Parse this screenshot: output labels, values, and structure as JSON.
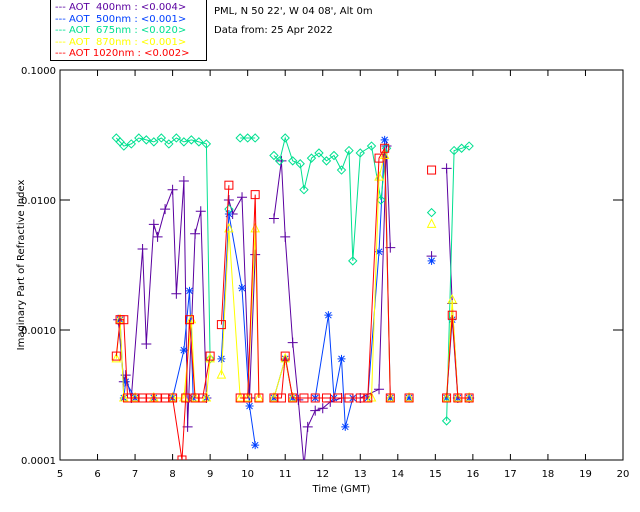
{
  "header": {
    "line1": "PML, N 50 22', W 04 08', Alt 0m",
    "line2": "Data from: 25 Apr 2022"
  },
  "chart_data": {
    "type": "line",
    "xlabel": "Time (GMT)",
    "ylabel": "Imaginary Part of Refractive Index",
    "xlim": [
      5,
      20
    ],
    "ylim": [
      0.0001,
      0.1
    ],
    "yscale": "log",
    "xticks": [
      "5",
      "6",
      "7",
      "8",
      "9",
      "10",
      "11",
      "12",
      "13",
      "14",
      "15",
      "16",
      "17",
      "18",
      "19",
      "20"
    ],
    "yticks": [
      "0.0001",
      "0.0010",
      "0.0100",
      "0.1000"
    ],
    "legend_position": "top-left",
    "series": [
      {
        "name": "AOT  400nm : <0.004>",
        "color": "#5a00a0",
        "marker": "plus",
        "points": [
          [
            6.55,
            0.0012
          ],
          [
            6.7,
            0.0004
          ],
          [
            6.75,
            0.00045
          ],
          [
            6.9,
            0.0003
          ],
          [
            7.2,
            0.0042
          ],
          [
            7.3,
            0.00078
          ],
          [
            7.5,
            0.0065
          ],
          [
            7.6,
            0.0052
          ],
          [
            7.8,
            0.0085
          ],
          [
            8.0,
            0.012
          ],
          [
            8.1,
            0.0019
          ],
          [
            8.3,
            0.014
          ],
          [
            8.4,
            0.00018
          ],
          [
            8.6,
            0.0055
          ],
          [
            8.75,
            0.0082
          ],
          [
            8.9,
            0.0003
          ],
          [
            null,
            null
          ],
          [
            9.5,
            0.01
          ],
          [
            9.6,
            0.0078
          ],
          [
            9.85,
            0.0105
          ],
          [
            10.05,
            0.0003
          ],
          [
            10.2,
            0.0038
          ],
          [
            null,
            null
          ],
          [
            10.7,
            0.0072
          ],
          [
            10.9,
            0.02
          ],
          [
            11.0,
            0.0052
          ],
          [
            11.2,
            0.0008
          ],
          [
            11.35,
            0.00029
          ],
          [
            11.5,
            9e-05
          ],
          [
            11.6,
            0.00018
          ],
          [
            11.8,
            0.00024
          ],
          [
            12.0,
            0.00025
          ],
          [
            12.2,
            0.00028
          ],
          [
            12.5,
            0.0003
          ],
          [
            13.0,
            0.0003
          ],
          [
            13.5,
            0.00035
          ],
          [
            13.7,
            0.026
          ],
          [
            13.8,
            0.0043
          ],
          [
            null,
            null
          ],
          [
            14.9,
            0.0037
          ],
          [
            null,
            null
          ],
          [
            15.3,
            0.0175
          ],
          [
            15.45,
            0.0016
          ],
          [
            15.6,
            0.0003
          ],
          [
            15.9,
            0.0003
          ]
        ]
      },
      {
        "name": "AOT  500nm : <0.001>",
        "color": "#0040ff",
        "marker": "asterisk",
        "points": [
          [
            6.6,
            0.0012
          ],
          [
            6.7,
            0.0003
          ],
          [
            6.75,
            0.0004
          ],
          [
            7.0,
            0.0003
          ],
          [
            7.5,
            0.0003
          ],
          [
            8.0,
            0.0003
          ],
          [
            8.3,
            0.0007
          ],
          [
            8.45,
            0.002
          ],
          [
            8.55,
            0.0003
          ],
          [
            8.9,
            0.0003
          ],
          [
            null,
            null
          ],
          [
            9.3,
            0.0006
          ],
          [
            9.5,
            0.0078
          ],
          [
            9.85,
            0.0021
          ],
          [
            10.05,
            0.00026
          ],
          [
            10.2,
            0.00013
          ],
          [
            null,
            null
          ],
          [
            10.7,
            0.0003
          ],
          [
            11.0,
            0.0006
          ],
          [
            11.2,
            0.0003
          ],
          [
            11.8,
            0.0003
          ],
          [
            12.15,
            0.0013
          ],
          [
            12.3,
            0.0003
          ],
          [
            12.5,
            0.0006
          ],
          [
            12.6,
            0.00018
          ],
          [
            12.8,
            0.0003
          ],
          [
            13.2,
            0.0003
          ],
          [
            13.5,
            0.004
          ],
          [
            13.65,
            0.029
          ],
          [
            13.8,
            0.0003
          ],
          [
            null,
            null
          ],
          [
            14.3,
            0.0003
          ],
          [
            null,
            null
          ],
          [
            14.9,
            0.0034
          ],
          [
            null,
            null
          ],
          [
            15.3,
            0.0003
          ],
          [
            15.45,
            0.0012
          ],
          [
            15.6,
            0.0003
          ],
          [
            15.9,
            0.0003
          ]
        ]
      },
      {
        "name": "AOT  675nm : <0.020>",
        "color": "#00e090",
        "marker": "diamond",
        "points": [
          [
            6.5,
            0.03
          ],
          [
            6.6,
            0.028
          ],
          [
            6.7,
            0.026
          ],
          [
            6.9,
            0.027
          ],
          [
            7.1,
            0.03
          ],
          [
            7.3,
            0.029
          ],
          [
            7.5,
            0.028
          ],
          [
            7.7,
            0.03
          ],
          [
            7.9,
            0.027
          ],
          [
            8.1,
            0.03
          ],
          [
            8.3,
            0.028
          ],
          [
            8.5,
            0.029
          ],
          [
            8.7,
            0.028
          ],
          [
            8.9,
            0.027
          ],
          [
            9.0,
            0.0006
          ],
          [
            null,
            null
          ],
          [
            9.5,
            0.0085
          ],
          [
            null,
            null
          ],
          [
            9.8,
            0.03
          ],
          [
            10.0,
            0.03
          ],
          [
            10.2,
            0.03
          ],
          [
            null,
            null
          ],
          [
            10.7,
            0.022
          ],
          [
            10.85,
            0.02
          ],
          [
            11.0,
            0.03
          ],
          [
            11.2,
            0.02
          ],
          [
            11.4,
            0.019
          ],
          [
            11.5,
            0.012
          ],
          [
            11.7,
            0.021
          ],
          [
            11.9,
            0.023
          ],
          [
            12.1,
            0.02
          ],
          [
            12.3,
            0.022
          ],
          [
            12.5,
            0.017
          ],
          [
            12.7,
            0.024
          ],
          [
            12.8,
            0.0034
          ],
          [
            13.0,
            0.023
          ],
          [
            13.3,
            0.026
          ],
          [
            13.55,
            0.01
          ],
          [
            13.7,
            0.025
          ],
          [
            null,
            null
          ],
          [
            14.9,
            0.008
          ],
          [
            null,
            null
          ],
          [
            15.3,
            0.0002
          ],
          [
            15.5,
            0.024
          ],
          [
            15.7,
            0.025
          ],
          [
            15.9,
            0.026
          ]
        ]
      },
      {
        "name": "AOT  870nm : <0.001>",
        "color": "#ffff00",
        "marker": "triangle",
        "points": [
          [
            6.5,
            0.0006
          ],
          [
            6.6,
            0.0012
          ],
          [
            6.7,
            0.0003
          ],
          [
            7.0,
            0.0003
          ],
          [
            7.5,
            0.0003
          ],
          [
            8.0,
            0.0003
          ],
          [
            8.3,
            0.0003
          ],
          [
            8.5,
            0.0012
          ],
          [
            8.6,
            0.0003
          ],
          [
            8.9,
            0.0003
          ],
          [
            9.0,
            0.0006
          ],
          [
            null,
            null
          ],
          [
            9.3,
            0.00045
          ],
          [
            9.5,
            0.006
          ],
          [
            9.8,
            0.0003
          ],
          [
            10.0,
            0.0003
          ],
          [
            10.2,
            0.006
          ],
          [
            10.3,
            0.0003
          ],
          [
            null,
            null
          ],
          [
            10.7,
            0.0003
          ],
          [
            11.0,
            0.0006
          ],
          [
            11.2,
            0.0003
          ],
          [
            13.3,
            0.0003
          ],
          [
            13.5,
            0.015
          ],
          [
            13.65,
            0.022
          ],
          [
            13.8,
            0.0003
          ],
          [
            null,
            null
          ],
          [
            14.3,
            0.0003
          ],
          [
            null,
            null
          ],
          [
            14.9,
            0.0065
          ],
          [
            null,
            null
          ],
          [
            15.3,
            0.0003
          ],
          [
            15.45,
            0.0017
          ],
          [
            15.6,
            0.0003
          ],
          [
            15.9,
            0.0003
          ]
        ]
      },
      {
        "name": "AOT 1020nm : <0.002>",
        "color": "#ff0000",
        "marker": "square",
        "points": [
          [
            6.5,
            0.00063
          ],
          [
            6.6,
            0.0012
          ],
          [
            6.7,
            0.0012
          ],
          [
            6.8,
            0.0003
          ],
          [
            7.0,
            0.0003
          ],
          [
            7.2,
            0.0003
          ],
          [
            7.4,
            0.0003
          ],
          [
            7.6,
            0.0003
          ],
          [
            7.8,
            0.0003
          ],
          [
            8.0,
            0.0003
          ],
          [
            8.25,
            0.0001
          ],
          [
            8.35,
            0.0003
          ],
          [
            8.45,
            0.0012
          ],
          [
            8.6,
            0.0003
          ],
          [
            8.8,
            0.0003
          ],
          [
            9.0,
            0.00063
          ],
          [
            null,
            null
          ],
          [
            9.3,
            0.0011
          ],
          [
            9.5,
            0.013
          ],
          [
            null,
            null
          ],
          [
            9.8,
            0.0003
          ],
          [
            10.0,
            0.0003
          ],
          [
            10.2,
            0.011
          ],
          [
            10.3,
            0.0003
          ],
          [
            null,
            null
          ],
          [
            10.7,
            0.0003
          ],
          [
            10.9,
            0.0003
          ],
          [
            11.0,
            0.00063
          ],
          [
            11.2,
            0.0003
          ],
          [
            11.5,
            0.0003
          ],
          [
            11.8,
            0.0003
          ],
          [
            12.1,
            0.0003
          ],
          [
            12.4,
            0.0003
          ],
          [
            12.7,
            0.0003
          ],
          [
            13.0,
            0.0003
          ],
          [
            13.2,
            0.0003
          ],
          [
            13.5,
            0.021
          ],
          [
            13.65,
            0.025
          ],
          [
            13.8,
            0.0003
          ],
          [
            null,
            null
          ],
          [
            14.3,
            0.0003
          ],
          [
            null,
            null
          ],
          [
            14.9,
            0.017
          ],
          [
            null,
            null
          ],
          [
            15.3,
            0.0003
          ],
          [
            15.45,
            0.0013
          ],
          [
            15.6,
            0.0003
          ],
          [
            15.9,
            0.0003
          ]
        ]
      }
    ]
  }
}
